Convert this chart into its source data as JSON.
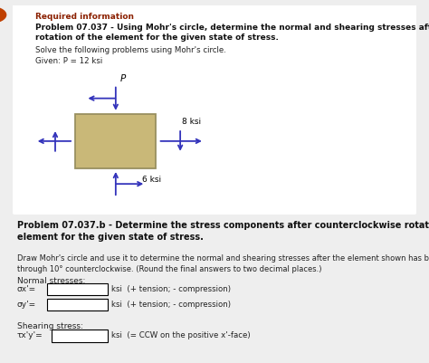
{
  "required_info_label": "Required information",
  "problem_title_line1": "Problem 07.037 - Using Mohr's circle, determine the normal and shearing stresses after",
  "problem_title_line2": "rotation of the element for the given state of stress.",
  "solve_line1": "Solve the following problems using Mohr's circle.",
  "solve_line2": "Given: P = 12 ksi",
  "problem_b_line1": "Problem 07.037.b - Determine the stress components after counterclockwise rotation of the",
  "problem_b_line2": "element for the given state of stress.",
  "desc_line1": "Draw Mohr's circle and use it to determine the normal and shearing stresses after the element shown has been rotated",
  "desc_line2": "through 10° counterclockwise. (Round the final answers to two decimal places.)",
  "normal_stresses_label": "Normal stresses:",
  "sigma_x_prefix": "σx'=",
  "sigma_x_suffix": "ksi  (+ tension; - compression)",
  "sigma_y_prefix": "σy'=",
  "sigma_y_suffix": "ksi  (+ tension; - compression)",
  "shearing_label": "Shearing stress:",
  "tau_prefix": "τx'y'=",
  "tau_suffix": "ksi  (= CCW on the positive x'-face)",
  "bg_color": "#eeeeee",
  "box_facecolor": "#ffffff",
  "border_color": "#bbbbbb",
  "required_color": "#8B2000",
  "bold_color": "#111111",
  "normal_color": "#222222",
  "arrow_color": "#3333bb",
  "square_fill": "#c9b878",
  "square_edge": "#999060",
  "warning_bg": "#c04000",
  "label_P": "P",
  "label_8ksi": "8 ksi",
  "label_6ksi": "6 ksi"
}
